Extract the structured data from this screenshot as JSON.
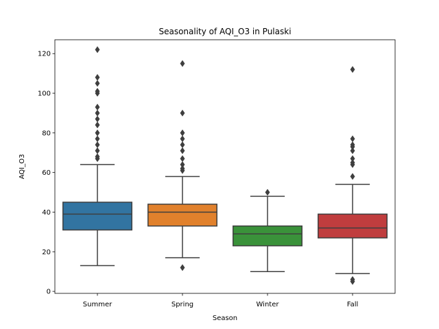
{
  "chart_data": {
    "type": "box",
    "title": "Seasonality of AQI_O3 in Pulaski",
    "xlabel": "Season",
    "ylabel": "AQI_O3",
    "ylim": [
      -1,
      127
    ],
    "yticks": [
      0,
      20,
      40,
      60,
      80,
      100,
      120
    ],
    "grid": false,
    "categories": [
      "Summer",
      "Spring",
      "Winter",
      "Fall"
    ],
    "colors": [
      "#3274a1",
      "#e1812c",
      "#3a923a",
      "#c03d3e"
    ],
    "edge_color": "#3f3f3f",
    "boxes": [
      {
        "season": "Summer",
        "whisker_low": 13,
        "q1": 31,
        "median": 39,
        "q3": 45,
        "whisker_high": 64,
        "outliers": [
          67,
          68,
          71,
          74,
          77,
          80,
          84,
          87,
          90,
          93,
          100,
          101,
          105,
          108,
          122
        ]
      },
      {
        "season": "Spring",
        "whisker_low": 17,
        "q1": 33,
        "median": 40,
        "q3": 44,
        "whisker_high": 58,
        "outliers": [
          12,
          61,
          62,
          64,
          67,
          71,
          74,
          77,
          80,
          90,
          115
        ]
      },
      {
        "season": "Winter",
        "whisker_low": 10,
        "q1": 23,
        "median": 29,
        "q3": 33,
        "whisker_high": 48,
        "outliers": [
          50
        ]
      },
      {
        "season": "Fall",
        "whisker_low": 9,
        "q1": 27,
        "median": 32,
        "q3": 39,
        "whisker_high": 54,
        "outliers": [
          5,
          6,
          58,
          64,
          65,
          67,
          71,
          73,
          74,
          77,
          112
        ]
      }
    ]
  }
}
